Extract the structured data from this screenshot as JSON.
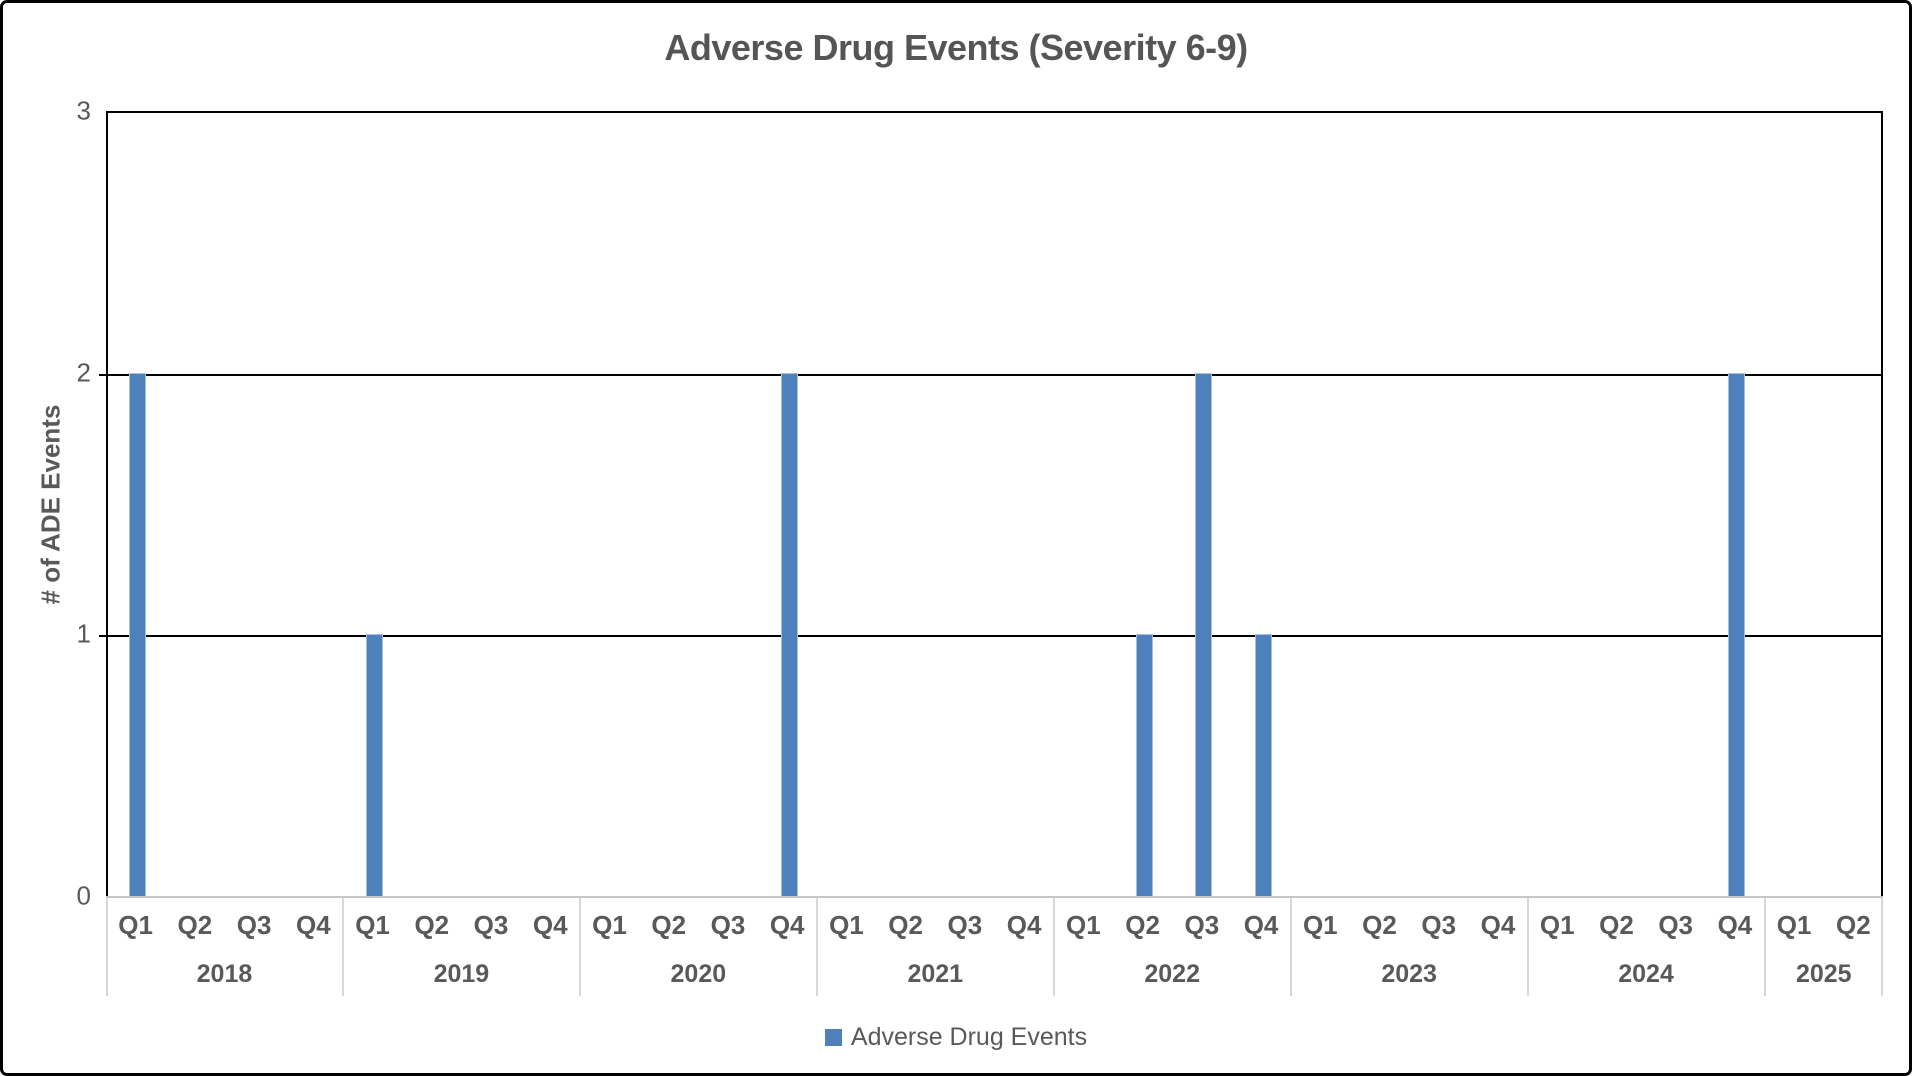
{
  "title": "Adverse Drug Events (Severity 6-9)",
  "y_axis": {
    "label": "# of ADE Events",
    "ticks": [
      "0",
      "1",
      "2",
      "3"
    ]
  },
  "legend": {
    "label": "Adverse Drug Events"
  },
  "colors": {
    "bar": "#4e80bc",
    "bar_edge": "#a6c0de",
    "gridline": "#000000",
    "category_axis_line": "#c6c6c6",
    "year_separator": "#d8d8d8",
    "text": "#595959"
  },
  "chart_data": {
    "type": "bar",
    "title": "Adverse Drug Events (Severity 6-9)",
    "xlabel": "",
    "ylabel": "# of ADE Events",
    "ylim": [
      0,
      3
    ],
    "y_major_ticks": [
      0,
      1,
      2,
      3
    ],
    "grid": true,
    "legend_position": "bottom",
    "series_name": "Adverse Drug Events",
    "groups": [
      {
        "year": "2018",
        "quarters": [
          "Q1",
          "Q2",
          "Q3",
          "Q4"
        ],
        "values": [
          2,
          0,
          0,
          0
        ]
      },
      {
        "year": "2019",
        "quarters": [
          "Q1",
          "Q2",
          "Q3",
          "Q4"
        ],
        "values": [
          1,
          0,
          0,
          0
        ]
      },
      {
        "year": "2020",
        "quarters": [
          "Q1",
          "Q2",
          "Q3",
          "Q4"
        ],
        "values": [
          0,
          0,
          0,
          2
        ]
      },
      {
        "year": "2021",
        "quarters": [
          "Q1",
          "Q2",
          "Q3",
          "Q4"
        ],
        "values": [
          0,
          0,
          0,
          0
        ]
      },
      {
        "year": "2022",
        "quarters": [
          "Q1",
          "Q2",
          "Q3",
          "Q4"
        ],
        "values": [
          0,
          1,
          2,
          1
        ]
      },
      {
        "year": "2023",
        "quarters": [
          "Q1",
          "Q2",
          "Q3",
          "Q4"
        ],
        "values": [
          0,
          0,
          0,
          0
        ]
      },
      {
        "year": "2024",
        "quarters": [
          "Q1",
          "Q2",
          "Q3",
          "Q4"
        ],
        "values": [
          0,
          0,
          0,
          2
        ]
      },
      {
        "year": "2025",
        "quarters": [
          "Q1",
          "Q2"
        ],
        "values": [
          0,
          0
        ]
      }
    ]
  }
}
